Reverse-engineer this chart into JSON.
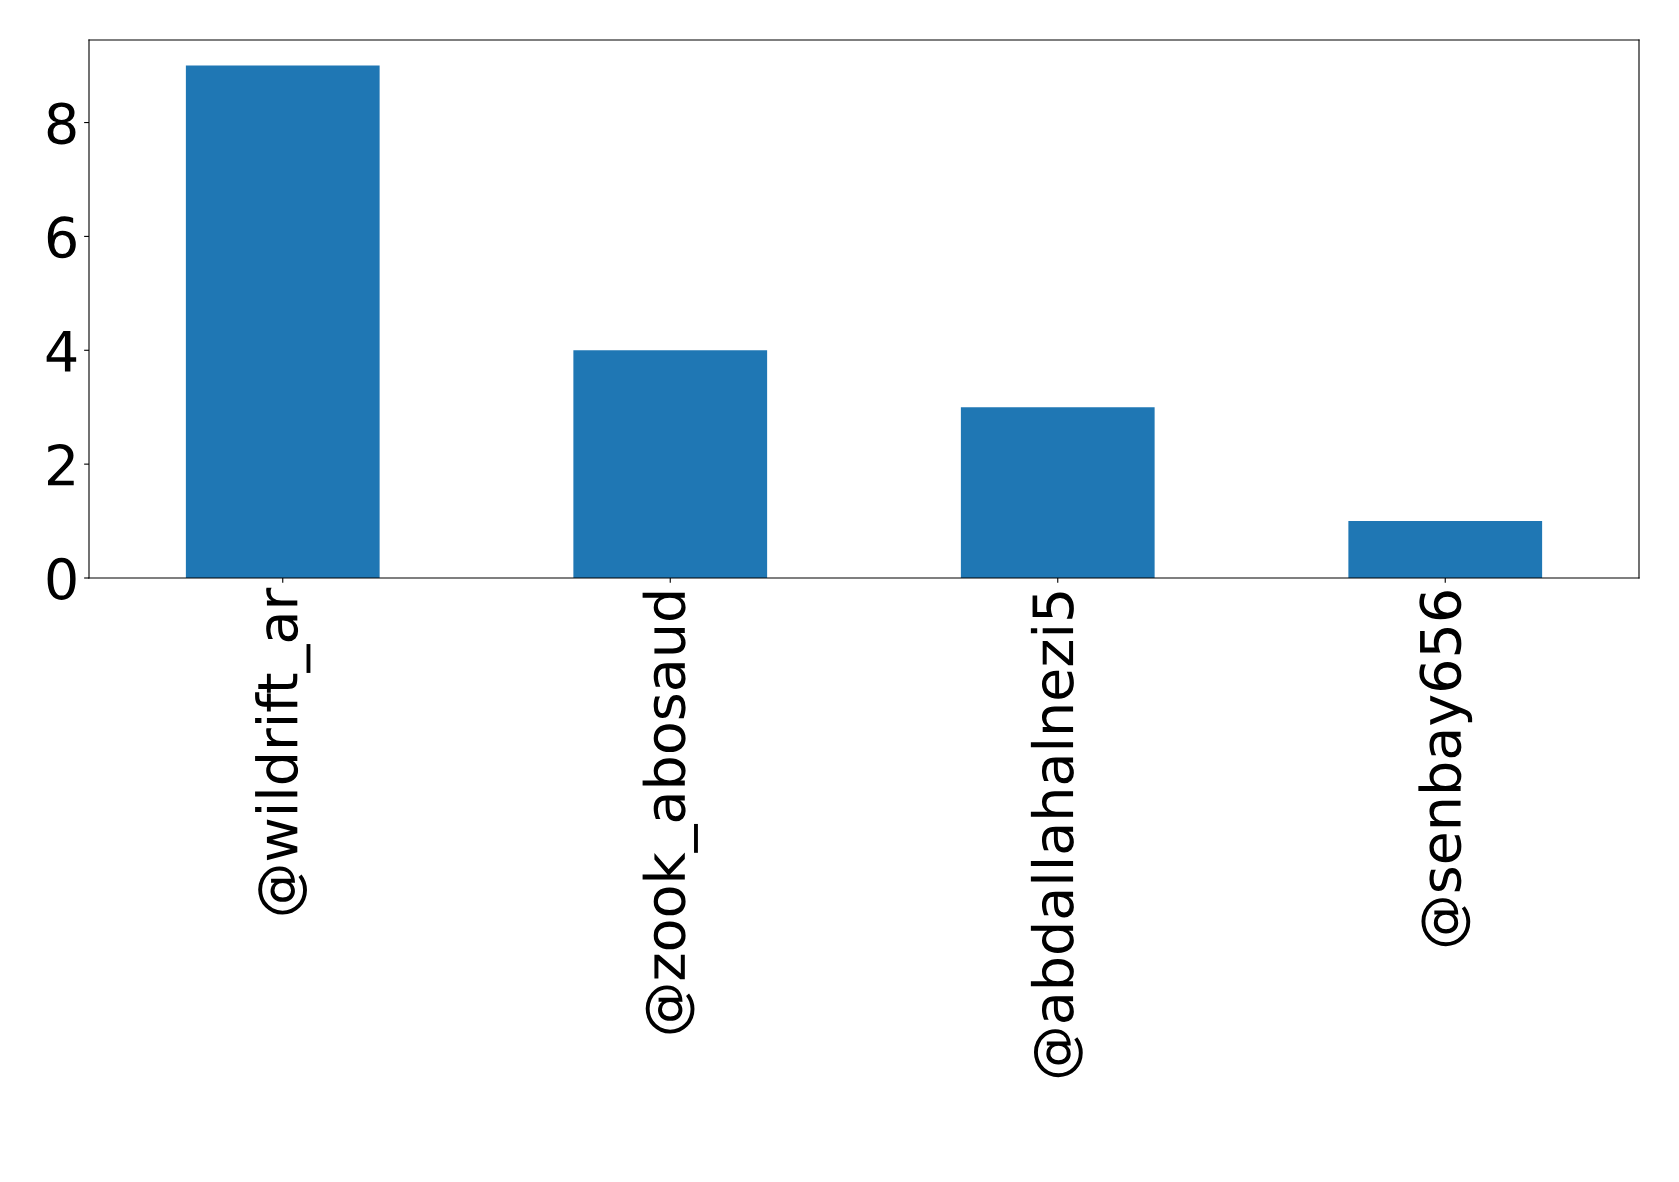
{
  "chart_data": {
    "type": "bar",
    "categories": [
      "@wildrift_ar",
      "@zook_abosaud",
      "@abdallahalnezi5",
      "@senbay656"
    ],
    "values": [
      9,
      4,
      3,
      1
    ],
    "color": "#1f77b4",
    "ylim": [
      0,
      9.45
    ],
    "yticks": [
      0,
      2,
      4,
      6,
      8
    ],
    "grid": false,
    "legend": false
  }
}
